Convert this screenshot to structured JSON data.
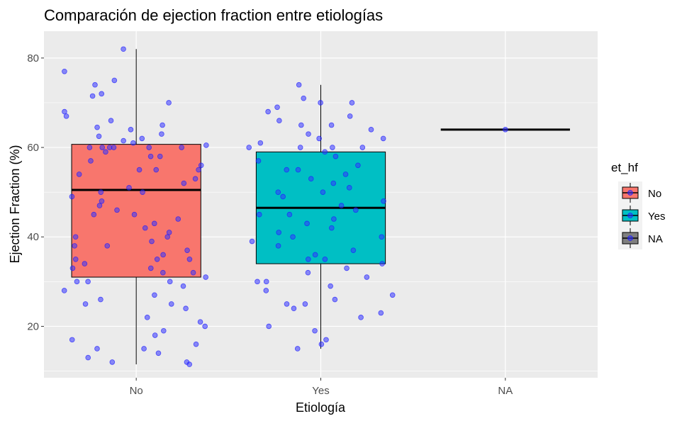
{
  "chart_data": {
    "type": "boxplot",
    "title": "Comparación de ejection fraction entre etiologías",
    "xlabel": "Etiología",
    "ylabel": "Ejection Fraction (%)",
    "categories": [
      "No",
      "Yes",
      "NA"
    ],
    "ylim": [
      8.5,
      86
    ],
    "yticks": [
      20,
      40,
      60,
      80
    ],
    "grid": true,
    "legend": {
      "title": "et_hf",
      "position": "right",
      "entries": [
        {
          "label": "No",
          "color": "#F8766D"
        },
        {
          "label": "Yes",
          "color": "#00BFC4"
        },
        {
          "label": "NA",
          "color": "#7F7F7F"
        }
      ]
    },
    "point_color": "#3333ff",
    "boxes": [
      {
        "category": "No",
        "fill": "#F8766D",
        "whisker_low": 11.5,
        "q1": 31,
        "median": 50.5,
        "q3": 60.7,
        "whisker_high": 82
      },
      {
        "category": "Yes",
        "fill": "#00BFC4",
        "whisker_low": 15,
        "q1": 34,
        "median": 46.5,
        "q3": 59,
        "whisker_high": 74
      },
      {
        "category": "NA",
        "fill": "#7F7F7F",
        "whisker_low": 64,
        "q1": 64,
        "median": 64,
        "q3": 64,
        "whisker_high": 64
      }
    ],
    "points": [
      {
        "category": "No",
        "y": [
          82,
          77,
          75,
          74,
          72,
          71.5,
          70,
          68,
          67,
          66,
          65,
          64.5,
          64,
          63,
          62.5,
          62,
          61.5,
          61,
          60.5,
          60,
          60,
          60,
          60,
          60,
          60,
          59,
          58,
          58,
          57,
          56,
          55,
          55,
          55,
          54,
          53,
          52,
          51,
          50,
          50,
          49,
          48,
          47,
          46,
          45,
          45,
          44,
          43,
          42,
          41,
          40,
          40,
          39,
          38,
          38,
          37,
          36,
          35,
          35,
          35,
          34,
          33,
          33,
          32,
          32,
          31,
          30,
          30,
          30,
          29,
          28,
          27,
          26,
          25,
          25,
          24,
          22,
          21,
          20,
          19,
          18,
          17,
          16,
          15,
          15,
          14,
          13,
          12,
          12,
          11.5
        ]
      },
      {
        "category": "Yes",
        "y": [
          74,
          71,
          70,
          70,
          69,
          68,
          67,
          66,
          65,
          65,
          64,
          63,
          62,
          62,
          61,
          60,
          60,
          60,
          60,
          59,
          58,
          57,
          56,
          55,
          55,
          54,
          53,
          52,
          51,
          50,
          50,
          49,
          48,
          47,
          46,
          45,
          45,
          44,
          43,
          42,
          41,
          40,
          40,
          39,
          38,
          37,
          36,
          35,
          35,
          34,
          33,
          32,
          31,
          30,
          30,
          29,
          28,
          27,
          26,
          25,
          25,
          24,
          23,
          22,
          20,
          19,
          17,
          16,
          15
        ]
      },
      {
        "category": "NA",
        "y": [
          64
        ]
      }
    ]
  }
}
